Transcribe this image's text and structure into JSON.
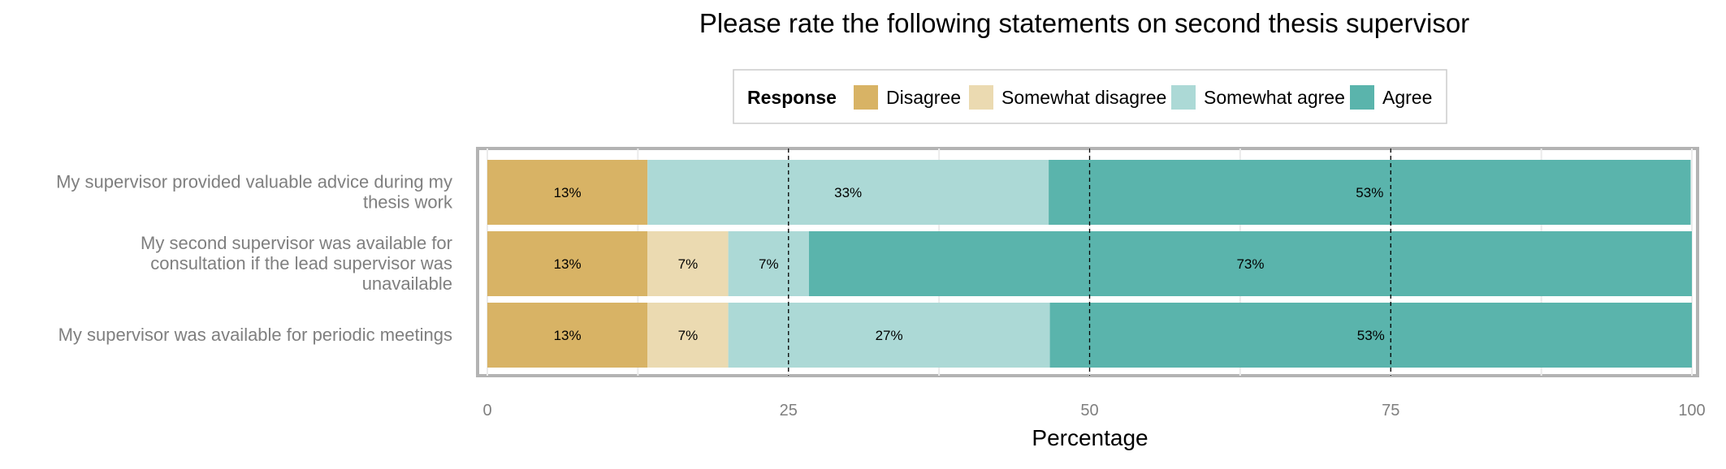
{
  "chart_data": {
    "type": "bar",
    "orientation": "horizontal",
    "stacked": true,
    "title": "Please rate the following statements on second thesis supervisor",
    "xlabel": "Percentage",
    "ylabel": "",
    "xlim": [
      0,
      100
    ],
    "xticks": [
      "0",
      "25",
      "50",
      "75",
      "100"
    ],
    "reference_lines": [
      25,
      50,
      75
    ],
    "grid": true,
    "legend": {
      "title": "Response",
      "placement": "top",
      "entries": [
        "Disagree",
        "Somewhat disagree",
        "Somewhat agree",
        "Agree"
      ]
    },
    "categories": [
      {
        "lines": [
          "My supervisor provided valuable advice during my",
          "thesis work"
        ]
      },
      {
        "lines": [
          "My second supervisor was available for",
          "consultation if the lead supervisor was",
          "unavailable"
        ]
      },
      {
        "lines": [
          "My supervisor was available for periodic meetings"
        ]
      }
    ],
    "series": [
      {
        "name": "Disagree",
        "color": "#d8b365",
        "values": [
          13.3,
          13.3,
          13.3
        ],
        "labels": [
          "13%",
          "13%",
          "13%"
        ]
      },
      {
        "name": "Somewhat disagree",
        "color": "#ebdab1",
        "values": [
          0,
          6.7,
          6.7
        ],
        "labels": [
          "",
          "7%",
          "7%"
        ]
      },
      {
        "name": "Somewhat agree",
        "color": "#acd9d6",
        "values": [
          33.3,
          6.7,
          26.7
        ],
        "labels": [
          "33%",
          "7%",
          "27%"
        ]
      },
      {
        "name": "Agree",
        "color": "#5ab4ac",
        "values": [
          53.3,
          73.3,
          53.3
        ],
        "labels": [
          "53%",
          "73%",
          "53%"
        ]
      }
    ]
  }
}
